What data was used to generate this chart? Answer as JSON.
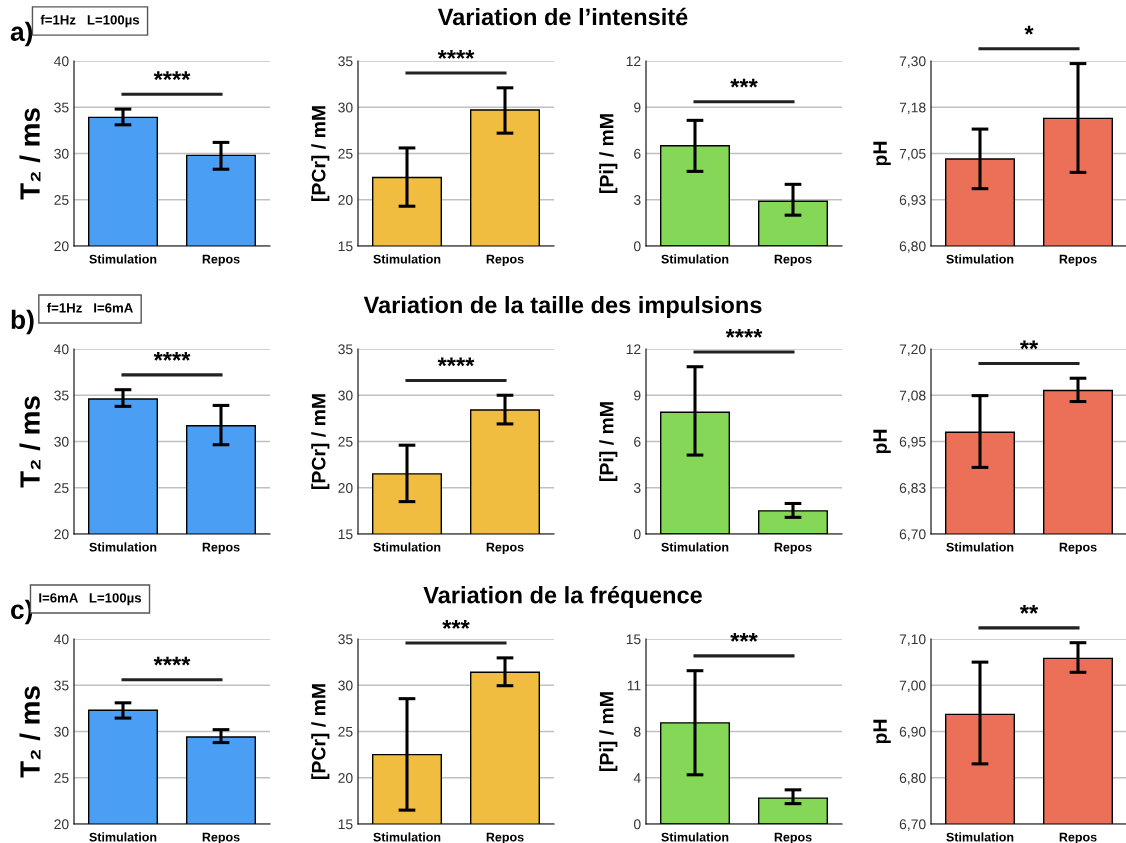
{
  "chart_data": [
    {
      "type": "bar",
      "ylabel": "T₂ / ms",
      "categories": [
        "Stimulation",
        "Repos"
      ],
      "values": [
        33.9,
        29.8
      ],
      "errors": [
        [
          33.1,
          34.8
        ],
        [
          28.3,
          31.2
        ]
      ],
      "color": "#4a9ff5",
      "ylim": [
        20,
        40
      ],
      "yticks": [
        20,
        25,
        30,
        35,
        40
      ],
      "grid": "y",
      "annotations": [
        "a)",
        "f=1Hz   L=100µs",
        "****"
      ]
    },
    {
      "type": "bar",
      "ylabel": "[PCr] / mM",
      "categories": [
        "Stimulation",
        "Repos"
      ],
      "values": [
        22.4,
        29.7
      ],
      "errors": [
        [
          19.3,
          25.6
        ],
        [
          27.2,
          32.1
        ]
      ],
      "color": "#f0bd40",
      "ylim": [
        15,
        35
      ],
      "yticks": [
        15,
        20,
        25,
        30,
        35
      ],
      "grid": "y",
      "annotations": [
        "Variation de l’intensité",
        "****"
      ]
    },
    {
      "type": "bar",
      "ylabel": "[Pi] / mM",
      "categories": [
        "Stimulation",
        "Repos"
      ],
      "values": [
        6.5,
        2.9
      ],
      "errors": [
        [
          4.84,
          8.15
        ],
        [
          2.0,
          4.0
        ]
      ],
      "color": "#84d757",
      "ylim": [
        0,
        12
      ],
      "yticks": [
        0,
        3,
        6,
        9,
        12
      ],
      "grid": "y",
      "annotations": [
        "***"
      ]
    },
    {
      "type": "bar",
      "ylabel": "pH",
      "categories": [
        "Stimulation",
        "Repos"
      ],
      "values": [
        7.035,
        7.145
      ],
      "errors": [
        [
          6.955,
          7.116
        ],
        [
          6.999,
          7.293
        ]
      ],
      "color": "#ec6f58",
      "ylim": [
        6.8,
        7.3
      ],
      "yticks": [
        {
          "value": 6.8,
          "label": "6,80"
        },
        {
          "value": 6.925,
          "label": "6,93"
        },
        {
          "value": 7.05,
          "label": "7,05"
        },
        {
          "value": 7.175,
          "label": "7,18"
        },
        {
          "value": 7.3,
          "label": "7,30"
        }
      ],
      "grid": "y",
      "annotations": [
        "*"
      ]
    },
    {
      "type": "bar",
      "ylabel": "T₂ / ms",
      "categories": [
        "Stimulation",
        "Repos"
      ],
      "values": [
        34.6,
        31.7
      ],
      "errors": [
        [
          33.8,
          35.6
        ],
        [
          29.65,
          33.9
        ]
      ],
      "color": "#4a9ff5",
      "ylim": [
        20,
        40
      ],
      "yticks": [
        20,
        25,
        30,
        35,
        40
      ],
      "grid": "y",
      "annotations": [
        "b)",
        "f=1Hz   I=6mA",
        "****"
      ]
    },
    {
      "type": "bar",
      "ylabel": "[PCr] / mM",
      "categories": [
        "Stimulation",
        "Repos"
      ],
      "values": [
        21.5,
        28.4
      ],
      "errors": [
        [
          18.5,
          24.6
        ],
        [
          26.9,
          30.0
        ]
      ],
      "color": "#f0bd40",
      "ylim": [
        15,
        35
      ],
      "yticks": [
        15,
        20,
        25,
        30,
        35
      ],
      "grid": "y",
      "annotations": [
        "Variation de la taille des impulsions",
        "****"
      ]
    },
    {
      "type": "bar",
      "ylabel": "[Pi] / mM",
      "categories": [
        "Stimulation",
        "Repos"
      ],
      "values": [
        7.9,
        1.5
      ],
      "errors": [
        [
          5.12,
          10.85
        ],
        [
          1.08,
          1.98
        ]
      ],
      "color": "#84d757",
      "ylim": [
        0,
        12
      ],
      "yticks": [
        0,
        3,
        6,
        9,
        12
      ],
      "grid": "y",
      "annotations": [
        "****"
      ]
    },
    {
      "type": "bar",
      "ylabel": "pH",
      "categories": [
        "Stimulation",
        "Repos"
      ],
      "values": [
        6.975,
        7.088
      ],
      "errors": [
        [
          6.88,
          7.074
        ],
        [
          7.058,
          7.121
        ]
      ],
      "color": "#ec6f58",
      "ylim": [
        6.7,
        7.2
      ],
      "yticks": [
        {
          "value": 6.7,
          "label": "6,70"
        },
        {
          "value": 6.825,
          "label": "6,83"
        },
        {
          "value": 6.95,
          "label": "6,95"
        },
        {
          "value": 7.075,
          "label": "7,08"
        },
        {
          "value": 7.2,
          "label": "7,20"
        }
      ],
      "grid": "y",
      "annotations": [
        "**"
      ]
    },
    {
      "type": "bar",
      "ylabel": "T₂ / ms",
      "categories": [
        "Stimulation",
        "Repos"
      ],
      "values": [
        32.3,
        29.4
      ],
      "errors": [
        [
          31.45,
          33.1
        ],
        [
          28.8,
          30.2
        ]
      ],
      "color": "#4a9ff5",
      "ylim": [
        20,
        40
      ],
      "yticks": [
        20,
        25,
        30,
        35,
        40
      ],
      "grid": "y",
      "annotations": [
        "c)",
        "I=6mA   L=100µs",
        "****"
      ]
    },
    {
      "type": "bar",
      "ylabel": "[PCr] / mM",
      "categories": [
        "Stimulation",
        "Repos"
      ],
      "values": [
        22.5,
        31.4
      ],
      "errors": [
        [
          16.5,
          28.55
        ],
        [
          29.95,
          32.96
        ]
      ],
      "color": "#f0bd40",
      "ylim": [
        15,
        35
      ],
      "yticks": [
        15,
        20,
        25,
        30,
        35
      ],
      "grid": "y",
      "annotations": [
        "Variation de la fréquence",
        "***"
      ]
    },
    {
      "type": "bar",
      "ylabel": "[Pi] / mM",
      "categories": [
        "Stimulation",
        "Repos"
      ],
      "values": [
        8.2,
        2.1
      ],
      "errors": [
        [
          3.99,
          12.43
        ],
        [
          1.65,
          2.77
        ]
      ],
      "color": "#84d757",
      "ylim": [
        0,
        15
      ],
      "yticks": [
        0,
        {
          "value": 3.75,
          "label": "4"
        },
        {
          "value": 7.5,
          "label": "8"
        },
        {
          "value": 11.25,
          "label": "11"
        },
        15
      ],
      "grid": "y",
      "annotations": [
        "***"
      ]
    },
    {
      "type": "bar",
      "ylabel": "pH",
      "categories": [
        "Stimulation",
        "Repos"
      ],
      "values": [
        6.937,
        7.058
      ],
      "errors": [
        [
          6.83,
          7.05
        ],
        [
          7.028,
          7.092
        ]
      ],
      "color": "#ec6f58",
      "ylim": [
        6.7,
        7.1
      ],
      "yticks": [
        {
          "value": 6.7,
          "label": "6,70"
        },
        {
          "value": 6.8,
          "label": "6,80"
        },
        {
          "value": 6.9,
          "label": "6,90"
        },
        {
          "value": 7.0,
          "label": "7,00"
        },
        {
          "value": 7.1,
          "label": "7,10"
        }
      ],
      "grid": "y",
      "annotations": [
        "**"
      ]
    }
  ]
}
